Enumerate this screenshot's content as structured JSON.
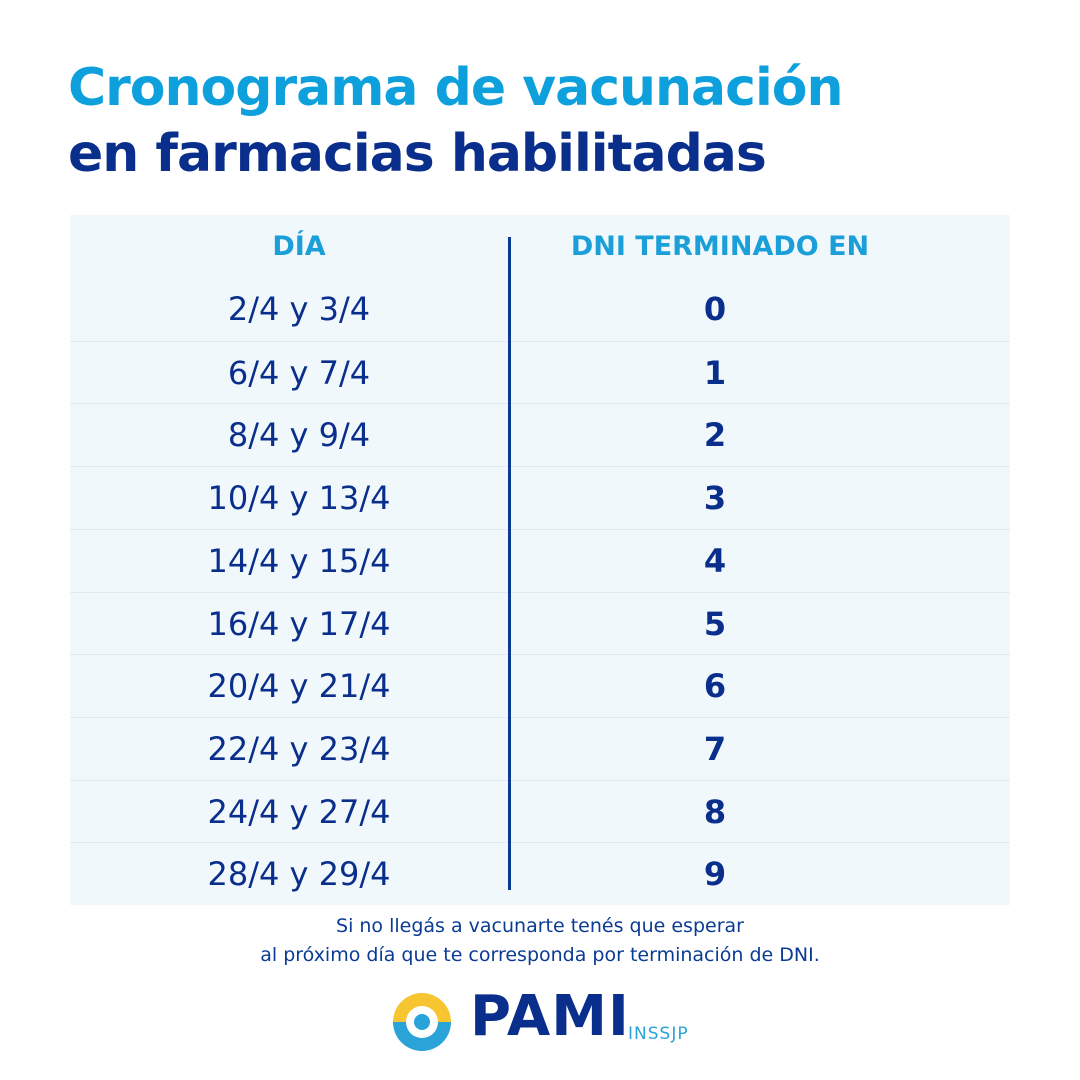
{
  "title": {
    "line1": "Cronograma de vacunación",
    "line2": "en farmacias habilitadas"
  },
  "table": {
    "headers": [
      "DÍA",
      "DNI TERMINADO EN"
    ],
    "rows": [
      {
        "day": "2/4 y 3/4",
        "dni": "0"
      },
      {
        "day": "6/4 y 7/4",
        "dni": "1"
      },
      {
        "day": "8/4 y 9/4",
        "dni": "2"
      },
      {
        "day": "10/4 y 13/4",
        "dni": "3"
      },
      {
        "day": "14/4 y 15/4",
        "dni": "4"
      },
      {
        "day": "16/4 y 17/4",
        "dni": "5"
      },
      {
        "day": "20/4 y 21/4",
        "dni": "6"
      },
      {
        "day": "22/4 y 23/4",
        "dni": "7"
      },
      {
        "day": "24/4 y 27/4",
        "dni": "8"
      },
      {
        "day": "28/4 y 29/4",
        "dni": "9"
      }
    ]
  },
  "note": {
    "line1": "Si no llegás a vacunarte tenés que esperar",
    "line2": "al próximo día que te corresponda por terminación de DNI."
  },
  "logo": {
    "name": "PAMI",
    "sub": "INSSJP"
  },
  "colors": {
    "light_blue": "#0ea0dd",
    "dark_blue": "#0a2e8c",
    "yellow": "#f7c531",
    "table_bg": "#f1f8fc"
  }
}
